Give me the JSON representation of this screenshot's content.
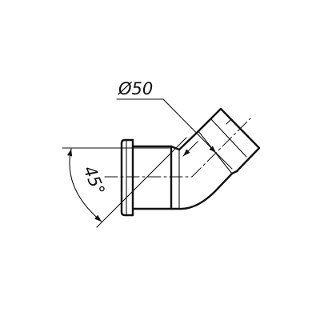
{
  "drawing": {
    "diameter_label": "Ø50",
    "angle_label": "45°",
    "line_color": "#111111",
    "background": "#ffffff"
  }
}
